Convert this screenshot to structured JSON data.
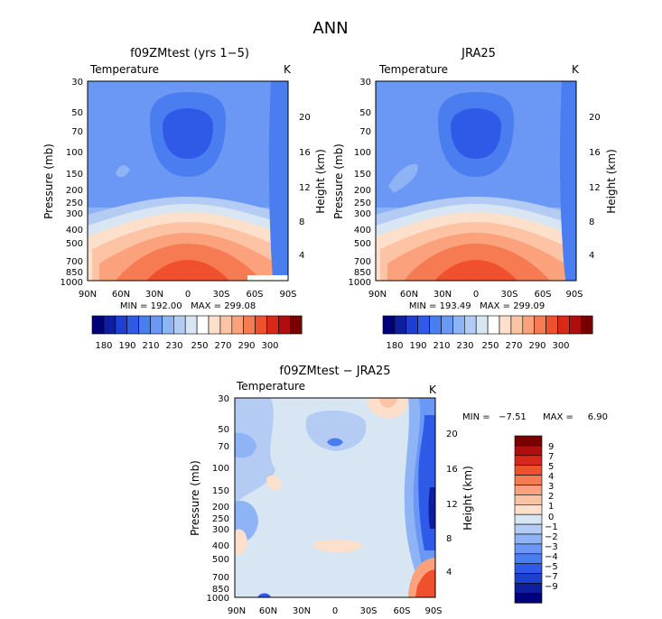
{
  "figure_title": "ANN",
  "colors": {
    "temp_scale": [
      "#00007a",
      "#0d1f9e",
      "#1f3fd0",
      "#2f5ae8",
      "#4a7ef0",
      "#6a98f4",
      "#8eb4f6",
      "#b4ccf4",
      "#d8e6f4",
      "#ffffff",
      "#fde0cc",
      "#fcc4a4",
      "#fba27c",
      "#f77b52",
      "#f0502e",
      "#d8281a",
      "#b00e0e",
      "#7a0000"
    ],
    "diff_scale": [
      "#00007a",
      "#0d1f9e",
      "#1f3fd0",
      "#2f5ae8",
      "#4a7ef0",
      "#6a98f4",
      "#8eb4f6",
      "#b4ccf4",
      "#d8e6f4",
      "#fde0cc",
      "#fcc4a4",
      "#fba27c",
      "#f77b52",
      "#f0502e",
      "#d8281a",
      "#b00e0e",
      "#7a0000"
    ]
  },
  "chart_data": [
    {
      "type": "contour",
      "title": "f09ZMtest (yrs 1−5)",
      "variable": "Temperature",
      "units": "K",
      "xlabel": "",
      "ylabel": "Pressure (mb)",
      "ylabel_right": "Height (km)",
      "x_ticks": [
        "90N",
        "60N",
        "30N",
        "0",
        "30S",
        "60S",
        "90S"
      ],
      "y_ticks": [
        "30",
        "50",
        "70",
        "100",
        "150",
        "200",
        "250",
        "300",
        "400",
        "500",
        "700",
        "850",
        "1000"
      ],
      "height_ticks": [
        "20",
        "16",
        "12",
        "8",
        "4"
      ],
      "min_max": "MIN = 192.00   MAX = 299.08",
      "min": 192.0,
      "max": 299.08,
      "colorbar_labels": [
        "180",
        "190",
        "210",
        "230",
        "250",
        "270",
        "290",
        "300"
      ]
    },
    {
      "type": "contour",
      "title": "JRA25",
      "variable": "Temperature",
      "units": "K",
      "xlabel": "",
      "ylabel": "Pressure (mb)",
      "ylabel_right": "Height (km)",
      "x_ticks": [
        "90N",
        "60N",
        "30N",
        "0",
        "30S",
        "60S",
        "90S"
      ],
      "y_ticks": [
        "30",
        "50",
        "70",
        "100",
        "150",
        "200",
        "250",
        "300",
        "400",
        "500",
        "700",
        "850",
        "1000"
      ],
      "height_ticks": [
        "20",
        "16",
        "12",
        "8",
        "4"
      ],
      "min_max": "MIN = 193.49   MAX = 299.09",
      "min": 193.49,
      "max": 299.09,
      "colorbar_labels": [
        "180",
        "190",
        "210",
        "230",
        "250",
        "270",
        "290",
        "300"
      ]
    },
    {
      "type": "contour",
      "title": "f09ZMtest − JRA25",
      "variable": "Temperature",
      "units": "K",
      "xlabel": "",
      "ylabel": "Pressure (mb)",
      "ylabel_right": "Height (km)",
      "x_ticks": [
        "90N",
        "60N",
        "30N",
        "0",
        "30S",
        "60S",
        "90S"
      ],
      "y_ticks": [
        "30",
        "50",
        "70",
        "100",
        "150",
        "200",
        "250",
        "300",
        "400",
        "500",
        "700",
        "850",
        "1000"
      ],
      "height_ticks": [
        "20",
        "16",
        "12",
        "8",
        "4"
      ],
      "min_max_min": "MIN =   −7.51",
      "min_max_max": "MAX =     6.90",
      "min": -7.51,
      "max": 6.9,
      "colorbar_labels": [
        "9",
        "7",
        "5",
        "4",
        "3",
        "2",
        "1",
        "0",
        "−1",
        "−2",
        "−3",
        "−4",
        "−5",
        "−7",
        "−9"
      ]
    }
  ]
}
